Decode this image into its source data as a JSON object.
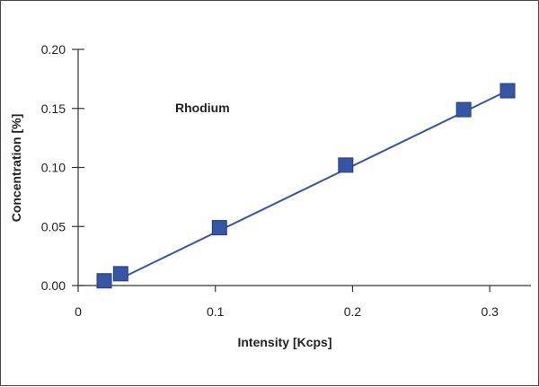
{
  "chart_data": {
    "type": "line",
    "title": "",
    "xlabel": "Intensity [Kcps]",
    "ylabel": "Concentration [%]",
    "annotation": "Rhodium",
    "xlim": [
      0,
      0.33
    ],
    "ylim": [
      0,
      0.2
    ],
    "x_ticks": [
      0,
      0.1,
      0.2,
      0.3
    ],
    "x_tick_labels": [
      "0",
      "0.1",
      "0.2",
      "0.3"
    ],
    "y_ticks": [
      0,
      0.05,
      0.1,
      0.15,
      0.2
    ],
    "y_tick_labels": [
      "0.00",
      "0.05",
      "0.10",
      "0.15",
      "0.20"
    ],
    "grid": false,
    "series": [
      {
        "marker": "square",
        "color": "#3556a6",
        "points": [
          {
            "x": 0.019,
            "y": 0.004
          },
          {
            "x": 0.031,
            "y": 0.01
          },
          {
            "x": 0.103,
            "y": 0.049
          },
          {
            "x": 0.195,
            "y": 0.102
          },
          {
            "x": 0.281,
            "y": 0.149
          },
          {
            "x": 0.313,
            "y": 0.165
          }
        ],
        "fit_line": {
          "x": [
            0.031,
            0.313
          ],
          "y": [
            0.006,
            0.165
          ]
        }
      }
    ]
  }
}
